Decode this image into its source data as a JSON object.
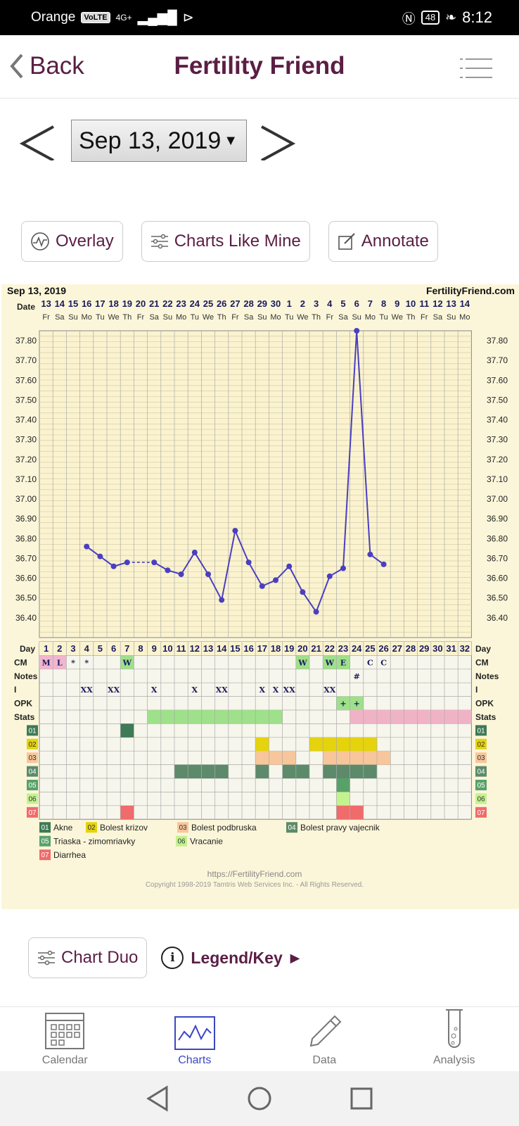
{
  "status": {
    "carrier": "Orange",
    "volte": "VoLTE",
    "network": "4G+",
    "battery": "48",
    "time": "8:12"
  },
  "header": {
    "back_label": "Back",
    "title": "Fertility Friend"
  },
  "date_nav": {
    "selected": "Sep 13, 2019",
    "arrow": "▼"
  },
  "actions": {
    "overlay": "Overlay",
    "charts_like_mine": "Charts Like Mine",
    "annotate": "Annotate"
  },
  "chart_data": {
    "type": "line",
    "title_left": "Sep 13, 2019",
    "brand": "FertilityFriend.com",
    "date_label": "Date",
    "dates": [
      "13",
      "14",
      "15",
      "16",
      "17",
      "18",
      "19",
      "20",
      "21",
      "22",
      "23",
      "24",
      "25",
      "26",
      "27",
      "28",
      "29",
      "30",
      "1",
      "2",
      "3",
      "4",
      "5",
      "6",
      "7",
      "8",
      "9",
      "10",
      "11",
      "12",
      "13",
      "14"
    ],
    "weekdays": [
      "Fr",
      "Sa",
      "Su",
      "Mo",
      "Tu",
      "We",
      "Th",
      "Fr",
      "Sa",
      "Su",
      "Mo",
      "Tu",
      "We",
      "Th",
      "Fr",
      "Sa",
      "Su",
      "Mo",
      "Tu",
      "We",
      "Th",
      "Fr",
      "Sa",
      "Su",
      "Mo",
      "Tu",
      "We",
      "Th",
      "Fr",
      "Sa",
      "Su",
      "Mo"
    ],
    "ylim": [
      36.3,
      37.85
    ],
    "ytick_labels": [
      "37.80",
      "37.70",
      "37.60",
      "37.50",
      "37.40",
      "37.30",
      "37.20",
      "37.10",
      "37.00",
      "36.90",
      "36.80",
      "36.70",
      "36.60",
      "36.50",
      "36.40"
    ],
    "temps": [
      null,
      null,
      null,
      36.76,
      36.71,
      36.66,
      36.68,
      null,
      36.68,
      36.64,
      36.62,
      36.73,
      36.62,
      36.49,
      36.84,
      36.68,
      36.56,
      36.59,
      36.66,
      36.53,
      36.43,
      36.61,
      36.65,
      37.85,
      36.72,
      36.67,
      null,
      null,
      null,
      null,
      null,
      null
    ],
    "dashed_gap": [
      6,
      8
    ],
    "day_label": "Day",
    "days": [
      "1",
      "2",
      "3",
      "4",
      "5",
      "6",
      "7",
      "8",
      "9",
      "10",
      "11",
      "12",
      "13",
      "14",
      "15",
      "16",
      "17",
      "18",
      "19",
      "20",
      "21",
      "22",
      "23",
      "24",
      "25",
      "26",
      "27",
      "28",
      "29",
      "30",
      "31",
      "32"
    ],
    "rows": [
      {
        "label": "CM",
        "cells": {
          "0": "M",
          "1": "L",
          "2": "*",
          "3": "*",
          "6": "W",
          "19": "W",
          "21": "W",
          "22": "E",
          "24": "C",
          "25": "C"
        }
      },
      {
        "label": "Notes",
        "cells": {
          "23": "#"
        }
      },
      {
        "label": "I",
        "cells": {
          "3": "XX",
          "5": "XX",
          "8": "X",
          "11": "X",
          "13": "XX",
          "16": "X",
          "17": "X",
          "18": "XX",
          "21": "XX"
        }
      },
      {
        "label": "OPK",
        "cells": {
          "22": "+",
          "23": "+"
        }
      },
      {
        "label": "Stats",
        "cells": {}
      }
    ],
    "symptoms": [
      "01",
      "02",
      "03",
      "04",
      "05",
      "06",
      "07"
    ],
    "legend": [
      {
        "code": "01",
        "name": "Akne",
        "color": "#3f7a56"
      },
      {
        "code": "02",
        "name": "Bolest krizov",
        "color": "#e5d30d"
      },
      {
        "code": "03",
        "name": "Bolest podbruska",
        "color": "#f8c69b"
      },
      {
        "code": "04",
        "name": "Bolest pravy vajecnik",
        "color": "#5c8a6a"
      },
      {
        "code": "05",
        "name": "Triaska - zimomriavky",
        "color": "#58a26a"
      },
      {
        "code": "06",
        "name": "Vracanie",
        "color": "#c4f28e"
      },
      {
        "code": "07",
        "name": "Diarrhea",
        "color": "#f06b6b"
      }
    ],
    "footer_url": "https://FertilityFriend.com",
    "copyright": "Copyright 1998-2019 Tamtris Web Services Inc. - All Rights Reserved."
  },
  "bottom": {
    "chart_duo": "Chart Duo",
    "legend_key": "Legend/Key ►"
  },
  "tabs": [
    {
      "label": "Calendar"
    },
    {
      "label": "Charts"
    },
    {
      "label": "Data"
    },
    {
      "label": "Analysis"
    }
  ],
  "colors": {
    "brand": "#5a1e44",
    "line": "#4a3fc0",
    "chart_bg": "#fbf6d9",
    "active_tab": "#3b47c4"
  }
}
